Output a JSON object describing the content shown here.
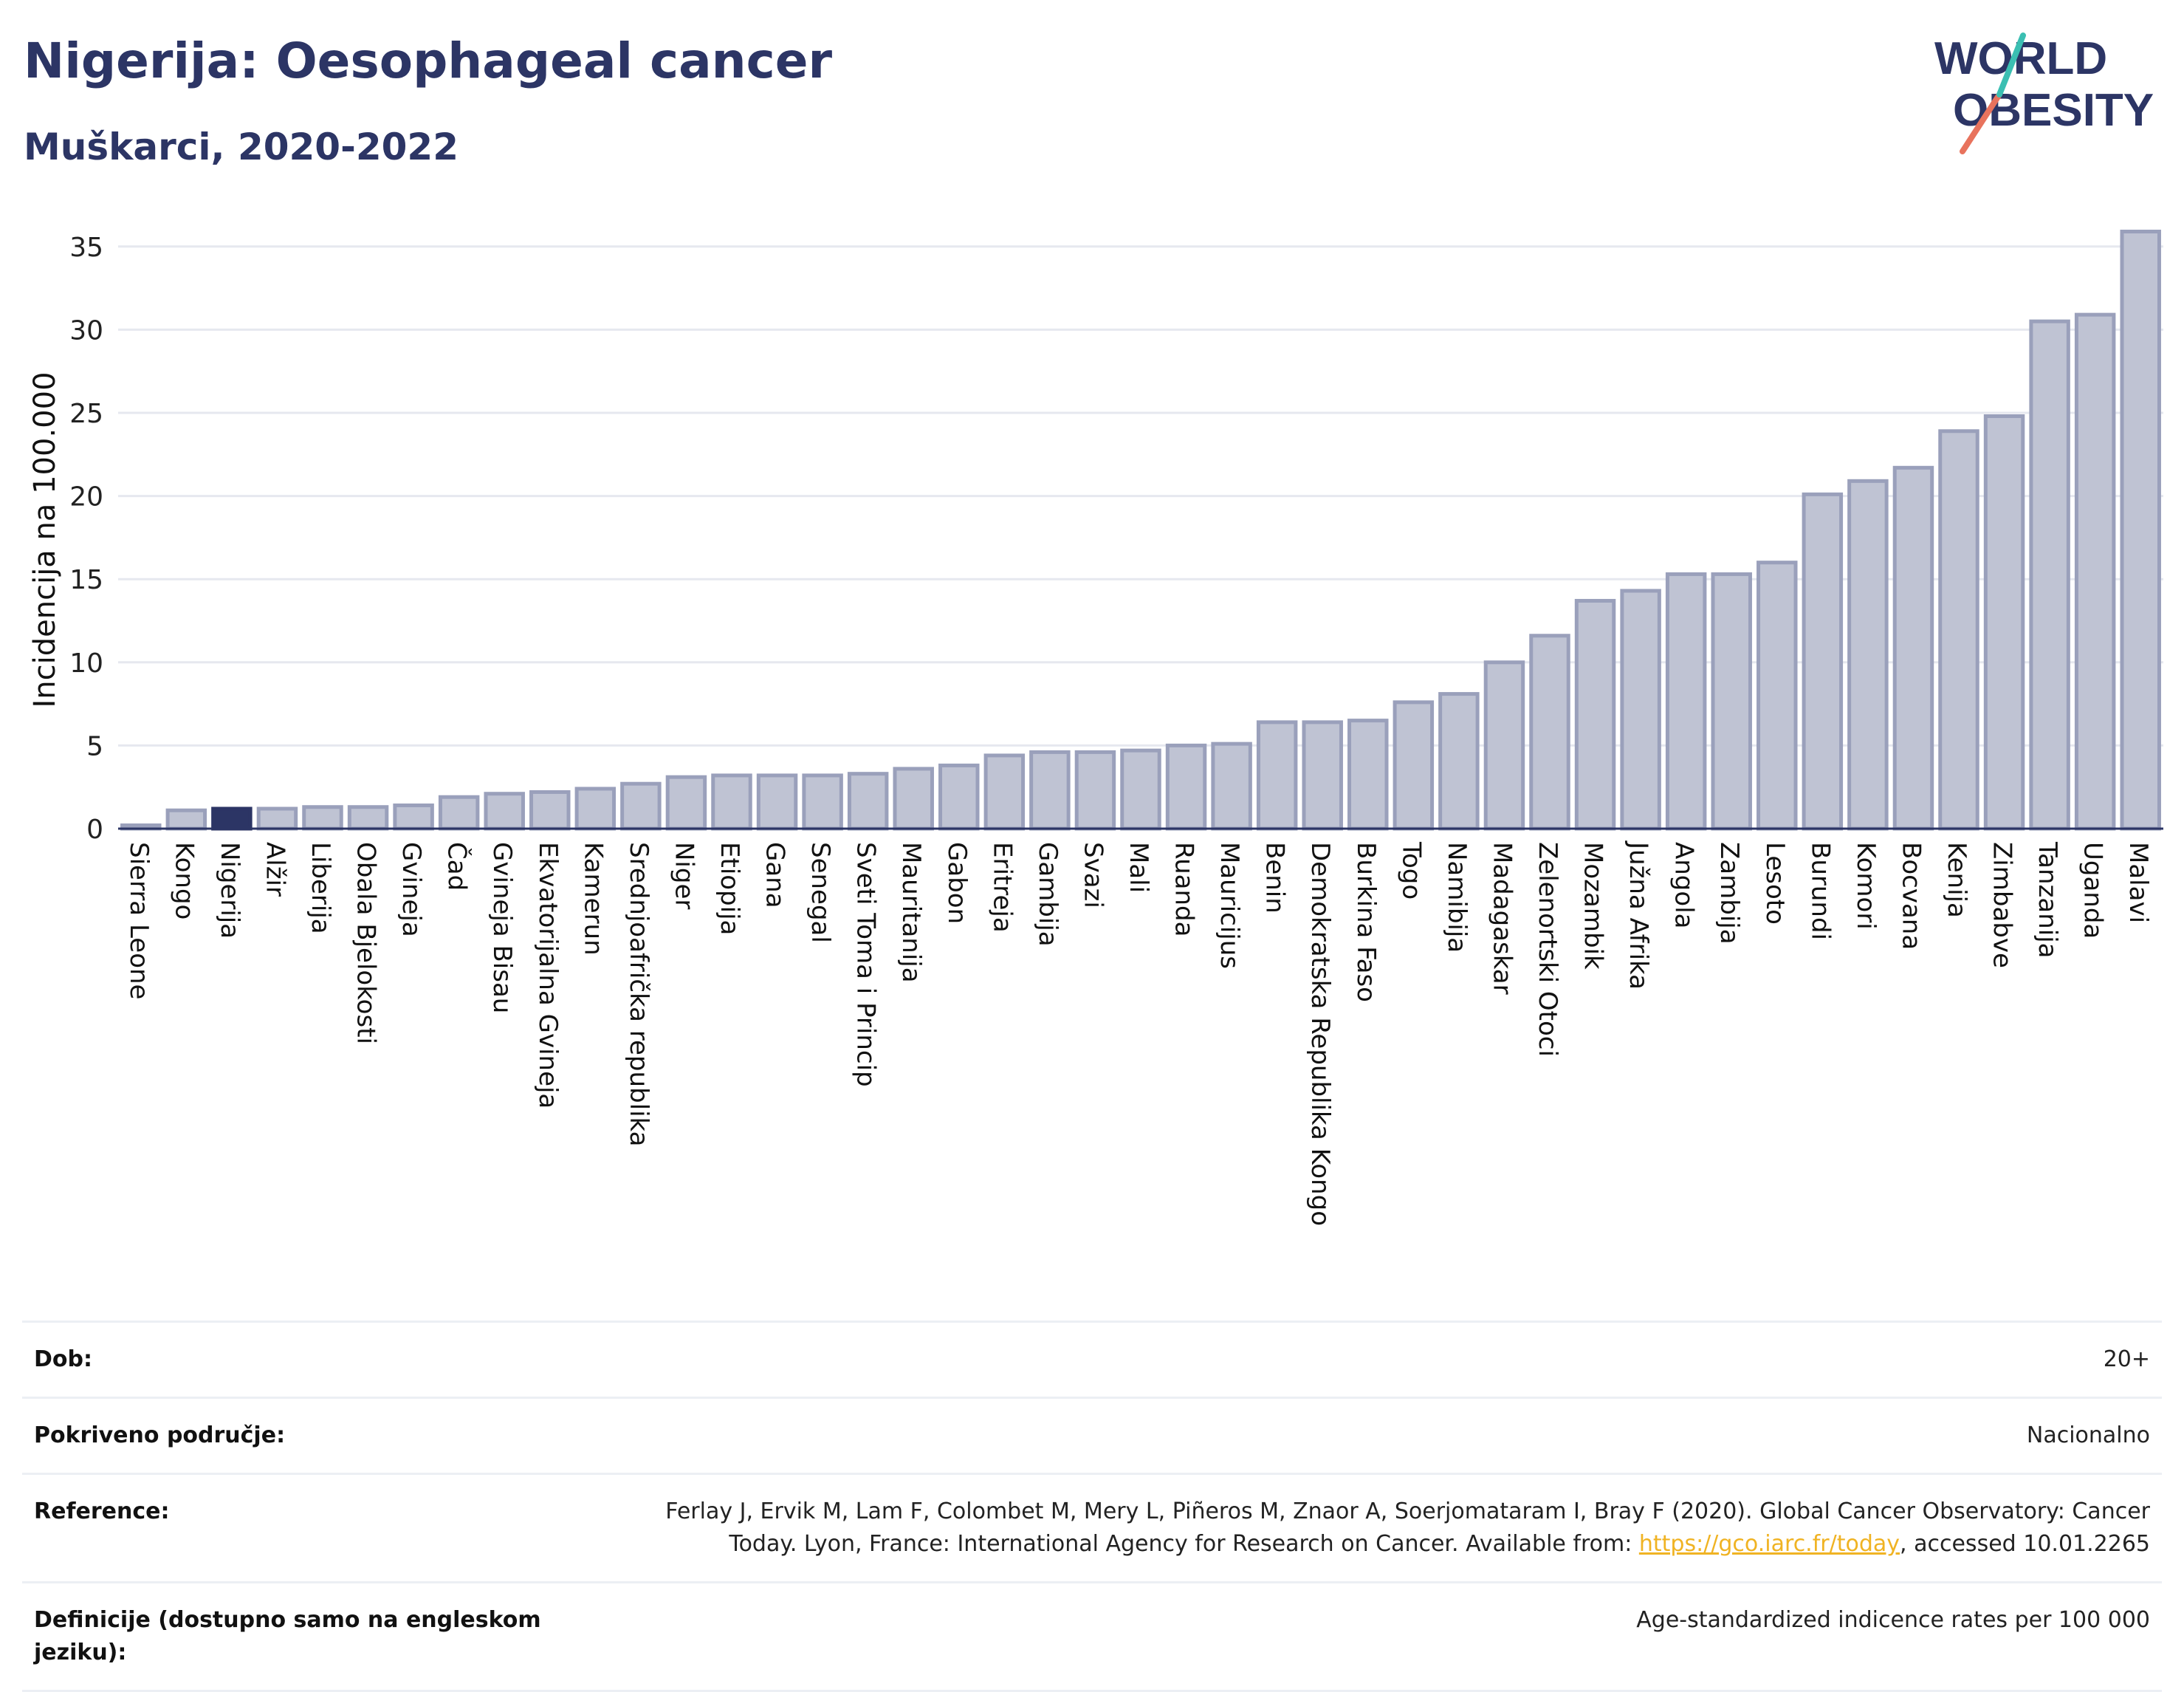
{
  "header": {
    "title": "Nigerija: Oesophageal cancer",
    "subtitle": "Muškarci, 2020-2022"
  },
  "logo": {
    "line1": "WORLD",
    "line2": "OBESITY"
  },
  "colors": {
    "bar": "#bfc3d3",
    "bar_stroke": "#9aa0bb",
    "highlight": "#2c3565",
    "text": "#2c3565",
    "grid": "#e6e8ef",
    "link": "#f0b323"
  },
  "chart_data": {
    "type": "bar",
    "ylabel": "Incidencija na 100.000",
    "ylim": [
      0,
      36.5
    ],
    "yticks": [
      0,
      5,
      10,
      15,
      20,
      25,
      30,
      35
    ],
    "grid": true,
    "highlight_category": "Nigerija",
    "categories": [
      "Sierra Leone",
      "Kongo",
      "Nigerija",
      "Alžir",
      "Liberija",
      "Obala Bjelokosti",
      "Gvineja",
      "Čad",
      "Gvineja Bisau",
      "Ekvatorijalna Gvineja",
      "Kamerun",
      "Srednjoafrička republika",
      "Niger",
      "Etiopija",
      "Gana",
      "Senegal",
      "Sveti Toma i Princip",
      "Mauritanija",
      "Gabon",
      "Eritreja",
      "Gambija",
      "Svazi",
      "Mali",
      "Ruanda",
      "Mauricijus",
      "Benin",
      "Demokratska Republika Kongo",
      "Burkina Faso",
      "Togo",
      "Namibija",
      "Madagaskar",
      "Zelenortski Otoci",
      "Mozambik",
      "Južna Afrika",
      "Angola",
      "Zambija",
      "Lesoto",
      "Burundi",
      "Komori",
      "Bocvana",
      "Kenija",
      "Zimbabve",
      "Tanzanija",
      "Uganda",
      "Malavi"
    ],
    "values": [
      0.2,
      1.1,
      1.2,
      1.2,
      1.3,
      1.3,
      1.4,
      1.9,
      2.1,
      2.2,
      2.4,
      2.7,
      3.1,
      3.2,
      3.2,
      3.2,
      3.3,
      3.6,
      3.8,
      4.4,
      4.6,
      4.6,
      4.7,
      5.0,
      5.1,
      6.4,
      6.4,
      6.5,
      7.6,
      8.1,
      10.0,
      11.6,
      13.7,
      14.3,
      15.3,
      15.3,
      16.0,
      20.1,
      20.9,
      21.7,
      23.9,
      24.8,
      30.5,
      30.9,
      35.9
    ]
  },
  "meta": [
    {
      "key": "Dob:",
      "value": "20+"
    },
    {
      "key": "Pokriveno područje:",
      "value": "Nacionalno"
    },
    {
      "key": "Reference:",
      "value_pre": "Ferlay J, Ervik M, Lam F, Colombet M, Mery L, Piñeros M, Znaor A, Soerjomataram I, Bray F (2020). Global Cancer Observatory: Cancer Today. Lyon, France: International Agency for Research on Cancer. Available from: ",
      "link": "https://gco.iarc.fr/today",
      "value_post": ", accessed 10.01.2265"
    },
    {
      "key": "Definicije (dostupno samo na engleskom jeziku):",
      "value": "Age-standardized indicence rates per 100 000"
    }
  ]
}
